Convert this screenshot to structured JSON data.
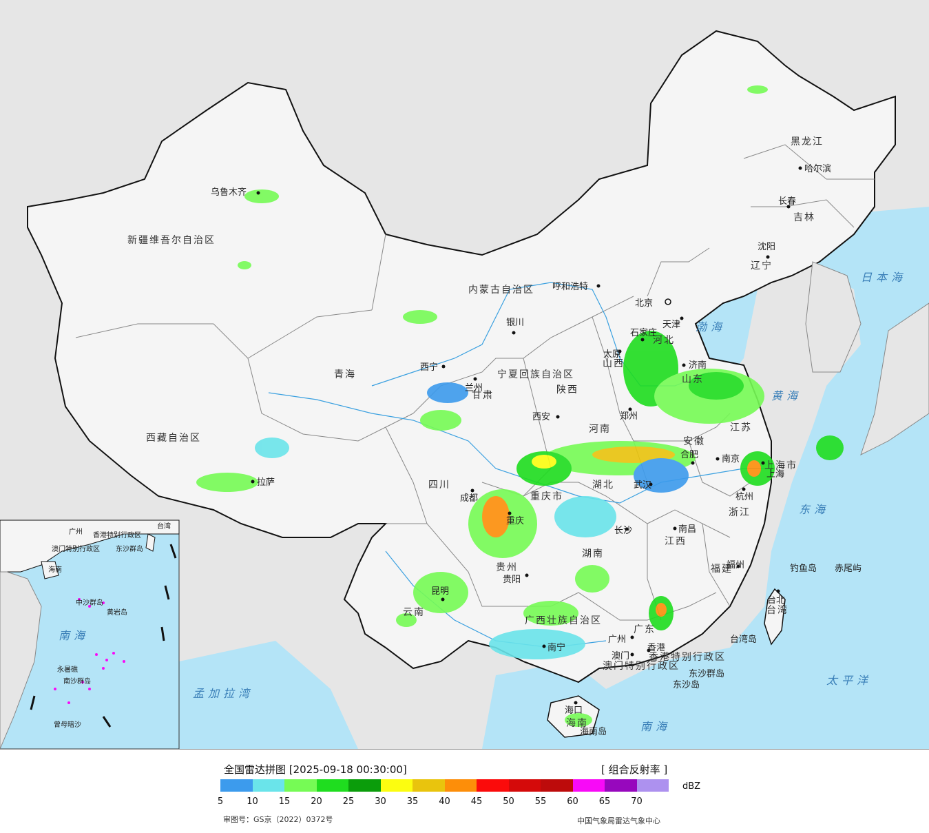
{
  "map": {
    "sea_labels": [
      "日本海",
      "渤海",
      "黄海",
      "东海",
      "太平洋",
      "南海",
      "孟加拉湾"
    ],
    "province_labels": [
      "黑龙江",
      "吉林",
      "辽宁",
      "内蒙古自治区",
      "河北",
      "山西",
      "山东",
      "江苏",
      "安徽",
      "浙江",
      "江西",
      "福建",
      "台湾",
      "广东",
      "广西壮族自治区",
      "湖南",
      "湖北",
      "河南",
      "陕西",
      "宁夏回族自治区",
      "甘肃",
      "青海",
      "新疆维吾尔自治区",
      "西藏自治区",
      "四川",
      "重庆市",
      "贵州",
      "云南",
      "海南",
      "上海市",
      "香港特别行政区",
      "澳门特别行政区",
      "天津",
      "北京"
    ],
    "cities": [
      "哈尔滨",
      "长春",
      "沈阳",
      "北京",
      "天津",
      "石家庄",
      "太原",
      "济南",
      "郑州",
      "西安",
      "兰州",
      "西宁",
      "银川",
      "呼和浩特",
      "乌鲁木齐",
      "拉萨",
      "成都",
      "重庆",
      "贵阳",
      "昆明",
      "南宁",
      "广州",
      "澳门",
      "香港",
      "长沙",
      "武汉",
      "南昌",
      "合肥",
      "南京",
      "上海",
      "杭州",
      "福州",
      "台北",
      "海口"
    ],
    "islands": [
      "钓鱼岛",
      "赤尾屿",
      "东沙群岛",
      "东沙岛",
      "台湾岛",
      "海南岛"
    ],
    "inset_labels": [
      "广州",
      "台湾",
      "香港特别行政区",
      "澳门特别行政区",
      "海南",
      "东沙群岛",
      "中沙群岛",
      "黄岩岛",
      "南海",
      "永暑礁",
      "南沙群岛",
      "曾母暗沙"
    ],
    "colors": {
      "ocean": "#b4e4f7",
      "land": "#f5f5f5",
      "outside": "#e6e6e6",
      "border": "#111111"
    }
  },
  "legend": {
    "title": "全国雷达拼图 [2025-09-18 00:30:00]",
    "product": "[ 组合反射率 ]",
    "unit": "dBZ",
    "colors": [
      "#3c9bed",
      "#6ae4ea",
      "#76fb55",
      "#1fdd1f",
      "#0b9d0b",
      "#fcfd10",
      "#e9c40d",
      "#fd8e09",
      "#fb0b0b",
      "#d50a0a",
      "#bd0b0b",
      "#f80af7",
      "#9708bd",
      "#ad91ef"
    ],
    "ticks": [
      "5",
      "10",
      "15",
      "20",
      "25",
      "30",
      "35",
      "40",
      "45",
      "50",
      "55",
      "60",
      "65",
      "70"
    ],
    "review_no": "审图号：GS京（2022）0372号",
    "agency": "中国气象局雷达气象中心"
  }
}
